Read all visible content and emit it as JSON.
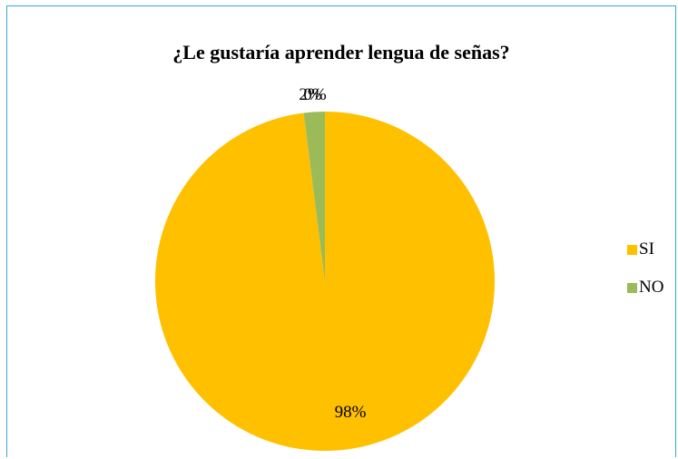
{
  "chart_data": {
    "type": "pie",
    "title": "¿Le gustaría aprender lengua de señas?",
    "categories": [
      "SI",
      "NO"
    ],
    "values": [
      98,
      2
    ],
    "data_labels": [
      "98%",
      "2%"
    ],
    "extra_label": "0%",
    "colors": [
      "#ffc000",
      "#9bbb59"
    ],
    "legend_position": "right"
  }
}
